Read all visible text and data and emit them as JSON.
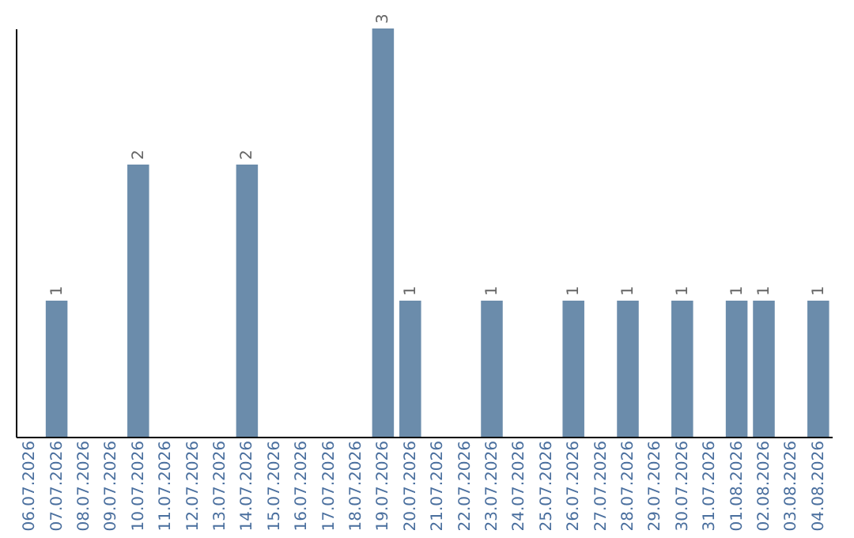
{
  "chart_data": {
    "type": "bar",
    "categories": [
      "06.07.2026",
      "07.07.2026",
      "08.07.2026",
      "09.07.2026",
      "10.07.2026",
      "11.07.2026",
      "12.07.2026",
      "13.07.2026",
      "14.07.2026",
      "15.07.2026",
      "16.07.2026",
      "17.07.2026",
      "18.07.2026",
      "19.07.2026",
      "20.07.2026",
      "21.07.2026",
      "22.07.2026",
      "23.07.2026",
      "24.07.2026",
      "25.07.2026",
      "26.07.2026",
      "27.07.2026",
      "28.07.2026",
      "29.07.2026",
      "30.07.2026",
      "31.07.2026",
      "01.08.2026",
      "02.08.2026",
      "03.08.2026",
      "04.08.2026"
    ],
    "values": [
      0,
      1,
      0,
      0,
      2,
      0,
      0,
      0,
      2,
      0,
      0,
      0,
      0,
      3,
      1,
      0,
      0,
      1,
      0,
      0,
      1,
      0,
      1,
      0,
      1,
      0,
      1,
      1,
      0,
      1
    ],
    "value_labels": [
      null,
      "1",
      null,
      null,
      "2",
      null,
      null,
      null,
      "2",
      null,
      null,
      null,
      null,
      "3",
      "1",
      null,
      null,
      "1",
      null,
      null,
      "1",
      null,
      "1",
      null,
      "1",
      null,
      "1",
      "1",
      null,
      "1"
    ],
    "color": "#6b8cab",
    "ylim": [
      0,
      3
    ],
    "tick_labels": "x",
    "grid": false
  }
}
